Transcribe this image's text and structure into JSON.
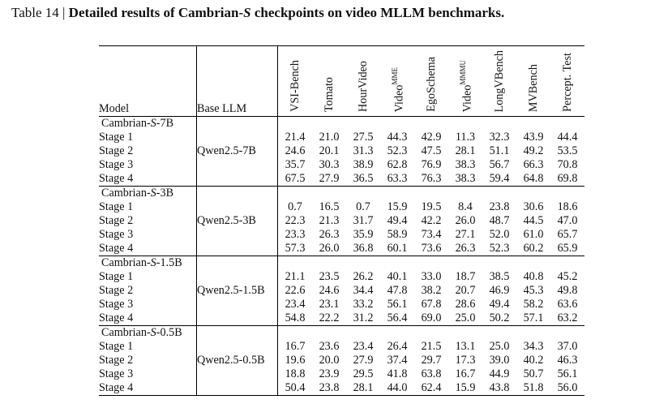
{
  "caption": {
    "prefix": "Table 14 | ",
    "title_pre": "Detailed results of Cambrian-",
    "title_italic": "S",
    "title_post": " checkpoints on video MLLM benchmarks."
  },
  "headers": {
    "model": "Model",
    "base_llm": "Base LLM",
    "benchmarks": [
      {
        "name": "VSI-Bench",
        "sup": ""
      },
      {
        "name": "Tomato",
        "sup": ""
      },
      {
        "name": "HourVideo",
        "sup": ""
      },
      {
        "name": "Video",
        "sup": "MME"
      },
      {
        "name": "EgoSchema",
        "sup": ""
      },
      {
        "name": "Video",
        "sup": "MMMU"
      },
      {
        "name": "LongVBench",
        "sup": ""
      },
      {
        "name": "MVBench",
        "sup": ""
      },
      {
        "name": "Percept. Test",
        "sup": ""
      }
    ]
  },
  "groups": [
    {
      "name_pre": "Cambrian-",
      "name_italic": "S",
      "name_post": "-7B",
      "base_llm": "Qwen2.5-7B",
      "rows": [
        {
          "stage": "Stage 1",
          "values": [
            "21.4",
            "21.0",
            "27.5",
            "44.3",
            "42.9",
            "11.3",
            "32.3",
            "43.9",
            "44.4"
          ]
        },
        {
          "stage": "Stage 2",
          "values": [
            "24.6",
            "20.1",
            "31.3",
            "52.3",
            "47.5",
            "28.1",
            "51.1",
            "49.2",
            "53.5"
          ]
        },
        {
          "stage": "Stage 3",
          "values": [
            "35.7",
            "30.3",
            "38.9",
            "62.8",
            "76.9",
            "38.3",
            "56.7",
            "66.3",
            "70.8"
          ]
        },
        {
          "stage": "Stage 4",
          "values": [
            "67.5",
            "27.9",
            "36.5",
            "63.3",
            "76.3",
            "38.3",
            "59.4",
            "64.8",
            "69.8"
          ]
        }
      ]
    },
    {
      "name_pre": "Cambrian-",
      "name_italic": "S",
      "name_post": "-3B",
      "base_llm": "Qwen2.5-3B",
      "rows": [
        {
          "stage": "Stage 1",
          "values": [
            "0.7",
            "16.5",
            "0.7",
            "15.9",
            "19.5",
            "8.4",
            "23.8",
            "30.6",
            "18.6"
          ]
        },
        {
          "stage": "Stage 2",
          "values": [
            "22.3",
            "21.3",
            "31.7",
            "49.4",
            "42.2",
            "26.0",
            "48.7",
            "44.5",
            "47.0"
          ]
        },
        {
          "stage": "Stage 3",
          "values": [
            "23.3",
            "26.3",
            "35.9",
            "58.9",
            "73.4",
            "27.1",
            "52.0",
            "61.0",
            "65.7"
          ]
        },
        {
          "stage": "Stage 4",
          "values": [
            "57.3",
            "26.0",
            "36.8",
            "60.1",
            "73.6",
            "26.3",
            "52.3",
            "60.2",
            "65.9"
          ]
        }
      ]
    },
    {
      "name_pre": "Cambrian-",
      "name_italic": "S",
      "name_post": "-1.5B",
      "base_llm": "Qwen2.5-1.5B",
      "rows": [
        {
          "stage": "Stage 1",
          "values": [
            "21.1",
            "23.5",
            "26.2",
            "40.1",
            "33.0",
            "18.7",
            "38.5",
            "40.8",
            "45.2"
          ]
        },
        {
          "stage": "Stage 2",
          "values": [
            "22.6",
            "24.6",
            "34.4",
            "47.8",
            "38.2",
            "20.7",
            "46.9",
            "45.3",
            "49.8"
          ]
        },
        {
          "stage": "Stage 3",
          "values": [
            "23.4",
            "23.1",
            "33.2",
            "56.1",
            "67.8",
            "28.6",
            "49.4",
            "58.2",
            "63.6"
          ]
        },
        {
          "stage": "Stage 4",
          "values": [
            "54.8",
            "22.2",
            "31.2",
            "56.4",
            "69.0",
            "25.0",
            "50.2",
            "57.1",
            "63.2"
          ]
        }
      ]
    },
    {
      "name_pre": "Cambrian-",
      "name_italic": "S",
      "name_post": "-0.5B",
      "base_llm": "Qwen2.5-0.5B",
      "rows": [
        {
          "stage": "Stage 1",
          "values": [
            "16.7",
            "23.6",
            "23.4",
            "26.4",
            "21.5",
            "13.1",
            "25.0",
            "34.3",
            "37.0"
          ]
        },
        {
          "stage": "Stage 2",
          "values": [
            "19.6",
            "20.0",
            "27.9",
            "37.4",
            "29.7",
            "17.3",
            "39.0",
            "40.2",
            "46.3"
          ]
        },
        {
          "stage": "Stage 3",
          "values": [
            "18.8",
            "23.9",
            "29.5",
            "41.8",
            "63.8",
            "16.7",
            "44.9",
            "50.7",
            "56.1"
          ]
        },
        {
          "stage": "Stage 4",
          "values": [
            "50.4",
            "23.8",
            "28.1",
            "44.0",
            "62.4",
            "15.9",
            "43.8",
            "51.8",
            "56.0"
          ]
        }
      ]
    }
  ]
}
